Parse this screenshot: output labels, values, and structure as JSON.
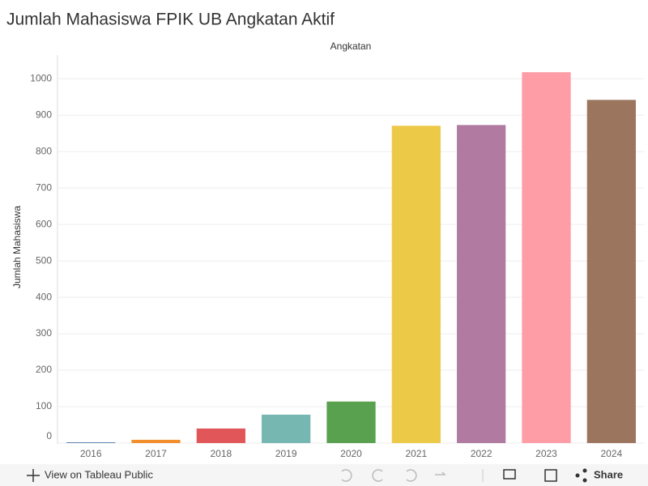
{
  "chart_data": {
    "type": "bar",
    "title": "Jumlah Mahasiswa FPIK UB Angkatan Aktif",
    "x_label": "Angkatan",
    "y_label": "Jumlah Mahasiswa",
    "categories": [
      "2016",
      "2017",
      "2018",
      "2019",
      "2020",
      "2021",
      "2022",
      "2023",
      "2024"
    ],
    "values": [
      2,
      9,
      40,
      78,
      114,
      871,
      873,
      1018,
      942
    ],
    "colors": [
      "#4e79a7",
      "#f28e2b",
      "#e15759",
      "#76b7b2",
      "#59a14f",
      "#edc948",
      "#b07aa1",
      "#ff9da7",
      "#9c755f"
    ],
    "ylim": [
      0,
      1065
    ],
    "yticks": [
      0,
      100,
      200,
      300,
      400,
      500,
      600,
      700,
      800,
      900,
      1000
    ],
    "grid": true
  },
  "toolbar": {
    "view_link": "View on Tableau Public",
    "share": "Share"
  }
}
